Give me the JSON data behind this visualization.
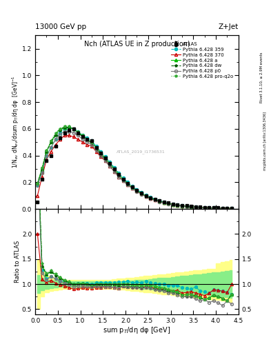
{
  "title_top": "13000 GeV pp",
  "title_right": "Z+Jet",
  "plot_title": "Nch (ATLAS UE in Z production)",
  "ylabel_main": "1/N$_{ev}$ dN$_{ev}$/dsum p$_{T}$/dη dφ  [GeV]$^{-1}$",
  "ylabel_ratio": "Ratio to ATLAS",
  "xlabel": "sum p$_{T}$/dη dφ [GeV]",
  "right_label1": "Rivet 3.1.10, ≥ 2.9M events",
  "right_label2": "mcplots.cern.ch [arXiv:1306.3436]",
  "watermark": "ATLAS_2019_I1736531",
  "xlim": [
    0,
    4.5
  ],
  "ylim_main": [
    0,
    1.3
  ],
  "ylim_ratio": [
    0.4,
    2.5
  ],
  "x_atlas": [
    0.05,
    0.15,
    0.25,
    0.35,
    0.45,
    0.55,
    0.65,
    0.75,
    0.85,
    0.95,
    1.05,
    1.15,
    1.25,
    1.35,
    1.45,
    1.55,
    1.65,
    1.75,
    1.85,
    1.95,
    2.05,
    2.15,
    2.25,
    2.35,
    2.45,
    2.55,
    2.65,
    2.75,
    2.85,
    2.95,
    3.05,
    3.15,
    3.25,
    3.35,
    3.45,
    3.55,
    3.65,
    3.75,
    3.85,
    3.95,
    4.05,
    4.15,
    4.25,
    4.35
  ],
  "y_atlas": [
    0.05,
    0.22,
    0.36,
    0.4,
    0.47,
    0.53,
    0.57,
    0.59,
    0.6,
    0.57,
    0.54,
    0.52,
    0.51,
    0.46,
    0.42,
    0.38,
    0.34,
    0.3,
    0.26,
    0.22,
    0.19,
    0.165,
    0.14,
    0.12,
    0.1,
    0.085,
    0.073,
    0.062,
    0.052,
    0.045,
    0.038,
    0.032,
    0.028,
    0.024,
    0.02,
    0.017,
    0.015,
    0.013,
    0.011,
    0.009,
    0.008,
    0.007,
    0.006,
    0.005
  ],
  "y_atlas_err": [
    0.003,
    0.005,
    0.006,
    0.006,
    0.007,
    0.008,
    0.008,
    0.008,
    0.008,
    0.008,
    0.007,
    0.007,
    0.007,
    0.006,
    0.006,
    0.005,
    0.005,
    0.004,
    0.004,
    0.003,
    0.003,
    0.003,
    0.002,
    0.002,
    0.002,
    0.001,
    0.001,
    0.001,
    0.001,
    0.001,
    0.001,
    0.001,
    0.001,
    0.001,
    0.001,
    0.001,
    0.001,
    0.001,
    0.001,
    0.001,
    0.001,
    0.001,
    0.001,
    0.001
  ],
  "series": [
    {
      "label": "Pythia 6.428 359",
      "color": "#00BBBB",
      "linestyle": "--",
      "marker": "o",
      "mfc": "#00BBBB",
      "y": [
        0.18,
        0.28,
        0.4,
        0.46,
        0.52,
        0.57,
        0.6,
        0.61,
        0.6,
        0.58,
        0.55,
        0.53,
        0.51,
        0.47,
        0.43,
        0.39,
        0.35,
        0.31,
        0.27,
        0.23,
        0.2,
        0.17,
        0.145,
        0.124,
        0.105,
        0.088,
        0.074,
        0.062,
        0.052,
        0.044,
        0.037,
        0.031,
        0.026,
        0.022,
        0.018,
        0.016,
        0.013,
        0.011,
        0.009,
        0.008,
        0.007,
        0.006,
        0.005,
        0.004
      ]
    },
    {
      "label": "Pythia 6.428 370",
      "color": "#CC0000",
      "linestyle": "-",
      "marker": "^",
      "mfc": "none",
      "y": [
        0.1,
        0.24,
        0.37,
        0.43,
        0.48,
        0.52,
        0.55,
        0.55,
        0.54,
        0.52,
        0.5,
        0.48,
        0.47,
        0.43,
        0.39,
        0.36,
        0.32,
        0.28,
        0.24,
        0.21,
        0.18,
        0.155,
        0.132,
        0.112,
        0.095,
        0.08,
        0.067,
        0.056,
        0.047,
        0.04,
        0.033,
        0.028,
        0.023,
        0.02,
        0.017,
        0.014,
        0.012,
        0.01,
        0.009,
        0.008,
        0.007,
        0.006,
        0.005,
        0.005
      ]
    },
    {
      "label": "Pythia 6.428 a",
      "color": "#00BB00",
      "linestyle": "-",
      "marker": "^",
      "mfc": "#00BB00",
      "y": [
        0.19,
        0.3,
        0.43,
        0.5,
        0.56,
        0.6,
        0.61,
        0.61,
        0.6,
        0.57,
        0.55,
        0.52,
        0.5,
        0.46,
        0.42,
        0.38,
        0.34,
        0.3,
        0.26,
        0.22,
        0.19,
        0.162,
        0.138,
        0.117,
        0.099,
        0.083,
        0.07,
        0.058,
        0.048,
        0.04,
        0.033,
        0.027,
        0.022,
        0.019,
        0.016,
        0.013,
        0.011,
        0.009,
        0.008,
        0.007,
        0.006,
        0.005,
        0.004,
        0.004
      ]
    },
    {
      "label": "Pythia 6.428 dw",
      "color": "#005500",
      "linestyle": "--",
      "marker": "*",
      "mfc": "#005500",
      "y": [
        0.19,
        0.3,
        0.43,
        0.5,
        0.55,
        0.59,
        0.61,
        0.61,
        0.6,
        0.57,
        0.54,
        0.52,
        0.49,
        0.45,
        0.41,
        0.37,
        0.33,
        0.29,
        0.25,
        0.21,
        0.18,
        0.155,
        0.132,
        0.112,
        0.094,
        0.079,
        0.066,
        0.055,
        0.046,
        0.038,
        0.032,
        0.026,
        0.022,
        0.018,
        0.015,
        0.013,
        0.011,
        0.009,
        0.008,
        0.007,
        0.006,
        0.005,
        0.004,
        0.004
      ]
    },
    {
      "label": "Pythia 6.428 p0",
      "color": "#777777",
      "linestyle": "-",
      "marker": "o",
      "mfc": "none",
      "y": [
        0.175,
        0.27,
        0.39,
        0.46,
        0.52,
        0.56,
        0.58,
        0.58,
        0.57,
        0.55,
        0.52,
        0.5,
        0.48,
        0.44,
        0.4,
        0.36,
        0.32,
        0.28,
        0.24,
        0.21,
        0.18,
        0.153,
        0.13,
        0.11,
        0.093,
        0.078,
        0.065,
        0.054,
        0.045,
        0.037,
        0.031,
        0.025,
        0.021,
        0.018,
        0.015,
        0.012,
        0.01,
        0.009,
        0.007,
        0.006,
        0.005,
        0.004,
        0.004,
        0.003
      ]
    },
    {
      "label": "Pythia 6.428 pro-q2o",
      "color": "#33AA33",
      "linestyle": ":",
      "marker": "*",
      "mfc": "#33AA33",
      "y": [
        0.19,
        0.31,
        0.44,
        0.51,
        0.57,
        0.6,
        0.62,
        0.62,
        0.6,
        0.58,
        0.55,
        0.52,
        0.5,
        0.46,
        0.42,
        0.38,
        0.34,
        0.3,
        0.26,
        0.22,
        0.19,
        0.162,
        0.138,
        0.117,
        0.099,
        0.083,
        0.07,
        0.058,
        0.048,
        0.04,
        0.033,
        0.027,
        0.022,
        0.019,
        0.016,
        0.013,
        0.011,
        0.009,
        0.008,
        0.007,
        0.006,
        0.005,
        0.004,
        0.004
      ]
    }
  ],
  "band_yellow_lo": [
    0.5,
    0.75,
    0.83,
    0.86,
    0.88,
    0.89,
    0.91,
    0.91,
    0.91,
    0.91,
    0.91,
    0.91,
    0.91,
    0.91,
    0.91,
    0.91,
    0.91,
    0.9,
    0.89,
    0.89,
    0.88,
    0.87,
    0.86,
    0.85,
    0.84,
    0.83,
    0.82,
    0.81,
    0.8,
    0.79,
    0.78,
    0.77,
    0.76,
    0.75,
    0.74,
    0.73,
    0.72,
    0.71,
    0.7,
    0.69,
    0.68,
    0.67,
    0.66,
    0.65
  ],
  "band_yellow_hi": [
    1.5,
    1.25,
    1.17,
    1.14,
    1.12,
    1.11,
    1.09,
    1.09,
    1.09,
    1.09,
    1.09,
    1.09,
    1.09,
    1.09,
    1.09,
    1.09,
    1.09,
    1.1,
    1.11,
    1.11,
    1.12,
    1.13,
    1.14,
    1.15,
    1.16,
    1.17,
    1.18,
    1.19,
    1.2,
    1.21,
    1.22,
    1.23,
    1.24,
    1.25,
    1.26,
    1.27,
    1.28,
    1.29,
    1.3,
    1.31,
    1.42,
    1.44,
    1.46,
    1.48
  ],
  "band_green_lo": [
    0.82,
    0.88,
    0.91,
    0.92,
    0.93,
    0.94,
    0.95,
    0.95,
    0.95,
    0.95,
    0.95,
    0.95,
    0.95,
    0.95,
    0.95,
    0.95,
    0.95,
    0.94,
    0.94,
    0.94,
    0.93,
    0.93,
    0.92,
    0.91,
    0.91,
    0.9,
    0.89,
    0.88,
    0.87,
    0.87,
    0.86,
    0.85,
    0.84,
    0.83,
    0.82,
    0.81,
    0.8,
    0.79,
    0.78,
    0.77,
    0.76,
    0.75,
    0.74,
    0.73
  ],
  "band_green_hi": [
    1.18,
    1.12,
    1.09,
    1.08,
    1.07,
    1.06,
    1.05,
    1.05,
    1.05,
    1.05,
    1.05,
    1.05,
    1.05,
    1.05,
    1.05,
    1.05,
    1.05,
    1.06,
    1.06,
    1.06,
    1.07,
    1.07,
    1.08,
    1.09,
    1.09,
    1.1,
    1.11,
    1.12,
    1.13,
    1.13,
    1.14,
    1.15,
    1.16,
    1.17,
    1.18,
    1.19,
    1.2,
    1.21,
    1.22,
    1.23,
    1.24,
    1.25,
    1.26,
    1.27
  ]
}
